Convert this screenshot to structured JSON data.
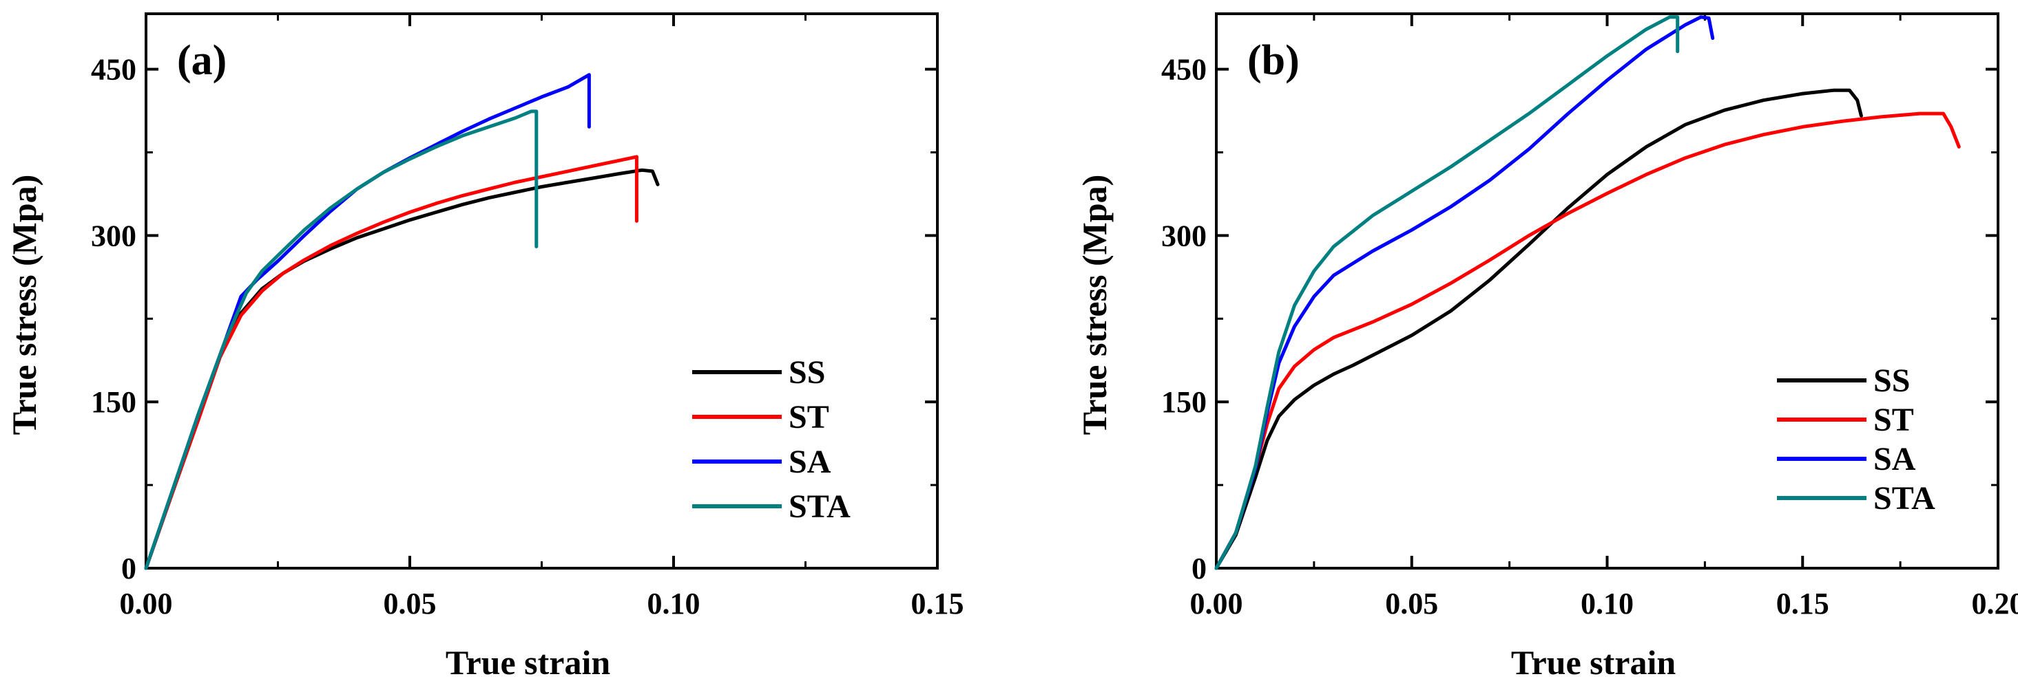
{
  "chart_data": [
    {
      "type": "line",
      "panel_label": "(a)",
      "xlabel": "True strain",
      "ylabel": "True stress (Mpa)",
      "xlim": [
        0,
        0.15
      ],
      "ylim": [
        0,
        500
      ],
      "xticks": [
        0,
        0.05,
        0.1,
        0.15
      ],
      "xtick_labels": [
        "0.00",
        "0.05",
        "0.10",
        "0.15"
      ],
      "yticks": [
        0,
        150,
        300,
        450
      ],
      "ytick_labels": [
        "0",
        "150",
        "300",
        "450"
      ],
      "legend_position": "bottom-right",
      "series": [
        {
          "name": "SS",
          "color": "#000000",
          "points": [
            [
              0,
              0
            ],
            [
              0.005,
              68
            ],
            [
              0.01,
              135
            ],
            [
              0.014,
              190
            ],
            [
              0.018,
              230
            ],
            [
              0.022,
              252
            ],
            [
              0.026,
              266
            ],
            [
              0.03,
              277
            ],
            [
              0.035,
              288
            ],
            [
              0.04,
              298
            ],
            [
              0.045,
              306
            ],
            [
              0.05,
              314
            ],
            [
              0.055,
              321
            ],
            [
              0.06,
              328
            ],
            [
              0.065,
              334
            ],
            [
              0.07,
              339
            ],
            [
              0.075,
              344
            ],
            [
              0.08,
              348
            ],
            [
              0.085,
              352
            ],
            [
              0.09,
              356
            ],
            [
              0.094,
              359
            ],
            [
              0.096,
              358
            ],
            [
              0.097,
              346
            ]
          ]
        },
        {
          "name": "ST",
          "color": "#ff0000",
          "points": [
            [
              0,
              0
            ],
            [
              0.005,
              68
            ],
            [
              0.01,
              135
            ],
            [
              0.014,
              190
            ],
            [
              0.018,
              228
            ],
            [
              0.022,
              250
            ],
            [
              0.026,
              266
            ],
            [
              0.03,
              278
            ],
            [
              0.035,
              291
            ],
            [
              0.04,
              302
            ],
            [
              0.045,
              312
            ],
            [
              0.05,
              321
            ],
            [
              0.055,
              329
            ],
            [
              0.06,
              336
            ],
            [
              0.065,
              342
            ],
            [
              0.07,
              348
            ],
            [
              0.075,
              353
            ],
            [
              0.08,
              358
            ],
            [
              0.085,
              363
            ],
            [
              0.09,
              368
            ],
            [
              0.093,
              371
            ],
            [
              0.093,
              313
            ]
          ]
        },
        {
          "name": "SA",
          "color": "#0000ff",
          "points": [
            [
              0,
              0
            ],
            [
              0.005,
              70
            ],
            [
              0.01,
              140
            ],
            [
              0.015,
              205
            ],
            [
              0.018,
              245
            ],
            [
              0.021,
              260
            ],
            [
              0.025,
              277
            ],
            [
              0.03,
              300
            ],
            [
              0.035,
              322
            ],
            [
              0.04,
              342
            ],
            [
              0.045,
              357
            ],
            [
              0.05,
              370
            ],
            [
              0.055,
              382
            ],
            [
              0.06,
              394
            ],
            [
              0.065,
              405
            ],
            [
              0.07,
              415
            ],
            [
              0.075,
              425
            ],
            [
              0.08,
              434
            ],
            [
              0.084,
              445
            ],
            [
              0.084,
              398
            ]
          ]
        },
        {
          "name": "STA",
          "color": "#008080",
          "points": [
            [
              0,
              0
            ],
            [
              0.005,
              70
            ],
            [
              0.01,
              140
            ],
            [
              0.015,
              205
            ],
            [
              0.019,
              248
            ],
            [
              0.022,
              268
            ],
            [
              0.025,
              282
            ],
            [
              0.03,
              305
            ],
            [
              0.035,
              325
            ],
            [
              0.04,
              342
            ],
            [
              0.045,
              357
            ],
            [
              0.05,
              369
            ],
            [
              0.055,
              380
            ],
            [
              0.06,
              390
            ],
            [
              0.065,
              398
            ],
            [
              0.07,
              406
            ],
            [
              0.073,
              412
            ],
            [
              0.074,
              412
            ],
            [
              0.074,
              290
            ]
          ]
        }
      ]
    },
    {
      "type": "line",
      "panel_label": "(b)",
      "xlabel": "True strain",
      "ylabel": "True stress (Mpa)",
      "xlim": [
        0,
        0.2
      ],
      "ylim": [
        0,
        500
      ],
      "xticks": [
        0,
        0.05,
        0.1,
        0.15,
        0.2
      ],
      "xtick_labels": [
        "0.00",
        "0.05",
        "0.10",
        "0.15",
        "0.20"
      ],
      "yticks": [
        0,
        150,
        300,
        450
      ],
      "ytick_labels": [
        "0",
        "150",
        "300",
        "450"
      ],
      "legend_position": "bottom-right",
      "series": [
        {
          "name": "SS",
          "color": "#000000",
          "points": [
            [
              0,
              0
            ],
            [
              0.005,
              30
            ],
            [
              0.01,
              82
            ],
            [
              0.013,
              115
            ],
            [
              0.016,
              137
            ],
            [
              0.02,
              152
            ],
            [
              0.025,
              165
            ],
            [
              0.03,
              175
            ],
            [
              0.035,
              183
            ],
            [
              0.04,
              192
            ],
            [
              0.05,
              210
            ],
            [
              0.06,
              232
            ],
            [
              0.07,
              260
            ],
            [
              0.08,
              292
            ],
            [
              0.09,
              325
            ],
            [
              0.1,
              355
            ],
            [
              0.11,
              380
            ],
            [
              0.12,
              400
            ],
            [
              0.13,
              413
            ],
            [
              0.14,
              422
            ],
            [
              0.15,
              428
            ],
            [
              0.158,
              431
            ],
            [
              0.162,
              431
            ],
            [
              0.164,
              422
            ],
            [
              0.165,
              408
            ]
          ]
        },
        {
          "name": "ST",
          "color": "#ff0000",
          "points": [
            [
              0,
              0
            ],
            [
              0.005,
              32
            ],
            [
              0.01,
              90
            ],
            [
              0.013,
              130
            ],
            [
              0.016,
              162
            ],
            [
              0.02,
              182
            ],
            [
              0.025,
              197
            ],
            [
              0.03,
              208
            ],
            [
              0.04,
              222
            ],
            [
              0.05,
              238
            ],
            [
              0.06,
              257
            ],
            [
              0.07,
              278
            ],
            [
              0.08,
              300
            ],
            [
              0.09,
              320
            ],
            [
              0.1,
              338
            ],
            [
              0.11,
              355
            ],
            [
              0.12,
              370
            ],
            [
              0.13,
              382
            ],
            [
              0.14,
              391
            ],
            [
              0.15,
              398
            ],
            [
              0.16,
              403
            ],
            [
              0.17,
              407
            ],
            [
              0.18,
              410
            ],
            [
              0.186,
              410
            ],
            [
              0.188,
              398
            ],
            [
              0.19,
              380
            ]
          ]
        },
        {
          "name": "SA",
          "color": "#0000ff",
          "points": [
            [
              0,
              0
            ],
            [
              0.005,
              32
            ],
            [
              0.01,
              90
            ],
            [
              0.013,
              140
            ],
            [
              0.016,
              185
            ],
            [
              0.02,
              218
            ],
            [
              0.025,
              245
            ],
            [
              0.03,
              264
            ],
            [
              0.04,
              286
            ],
            [
              0.05,
              305
            ],
            [
              0.06,
              326
            ],
            [
              0.07,
              350
            ],
            [
              0.08,
              378
            ],
            [
              0.09,
              410
            ],
            [
              0.1,
              440
            ],
            [
              0.11,
              468
            ],
            [
              0.12,
              490
            ],
            [
              0.124,
              497
            ],
            [
              0.126,
              496
            ],
            [
              0.127,
              478
            ]
          ]
        },
        {
          "name": "STA",
          "color": "#008080",
          "points": [
            [
              0,
              0
            ],
            [
              0.005,
              32
            ],
            [
              0.01,
              92
            ],
            [
              0.013,
              145
            ],
            [
              0.016,
              195
            ],
            [
              0.02,
              237
            ],
            [
              0.025,
              268
            ],
            [
              0.03,
              290
            ],
            [
              0.04,
              318
            ],
            [
              0.05,
              340
            ],
            [
              0.06,
              362
            ],
            [
              0.07,
              386
            ],
            [
              0.08,
              410
            ],
            [
              0.09,
              436
            ],
            [
              0.1,
              462
            ],
            [
              0.11,
              486
            ],
            [
              0.116,
              497
            ],
            [
              0.118,
              497
            ],
            [
              0.118,
              466
            ]
          ]
        }
      ]
    }
  ]
}
